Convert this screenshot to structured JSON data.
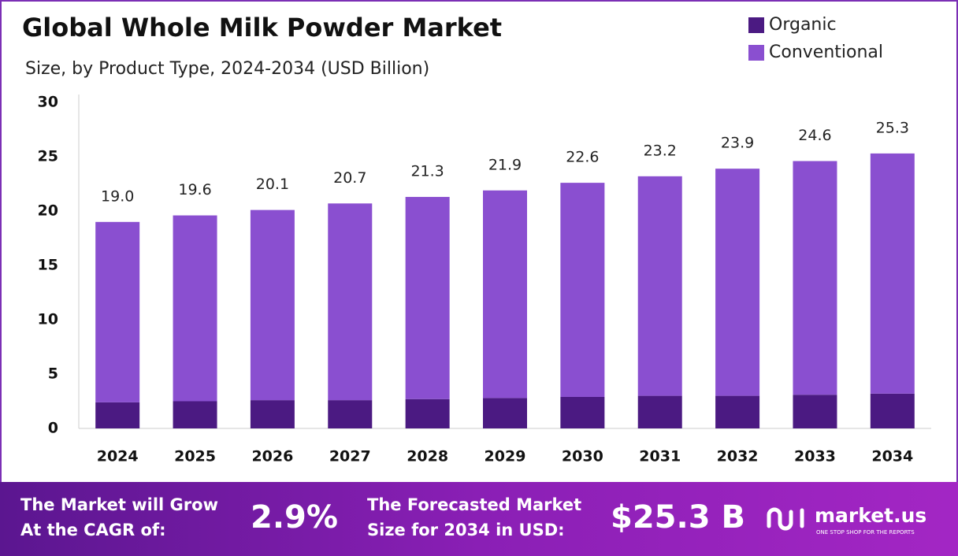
{
  "chart_data": {
    "type": "stacked_bar",
    "title": "Global Whole Milk Powder Market",
    "subtitle": "Size, by Product Type, 2024-2034 (USD Billion)",
    "categories": [
      "2024",
      "2025",
      "2026",
      "2027",
      "2028",
      "2029",
      "2030",
      "2031",
      "2032",
      "2033",
      "2034"
    ],
    "series": [
      {
        "name": "Organic",
        "color": "#4b1a82",
        "values": [
          2.4,
          2.5,
          2.6,
          2.6,
          2.7,
          2.8,
          2.9,
          3.0,
          3.0,
          3.1,
          3.2
        ]
      },
      {
        "name": "Conventional",
        "color": "#8a4fd0",
        "values": [
          16.6,
          17.1,
          17.5,
          18.1,
          18.6,
          19.1,
          19.7,
          20.2,
          20.9,
          21.5,
          22.1
        ]
      }
    ],
    "totals": [
      19,
      19.6,
      20.1,
      20.7,
      21.3,
      21.9,
      22.6,
      23.2,
      23.9,
      24.6,
      25.3
    ],
    "total_labels": [
      "19.0",
      "19.6",
      "20.1",
      "20.7",
      "21.3",
      "21.9",
      "22.6",
      "23.2",
      "23.9",
      "24.6",
      "25.3"
    ],
    "ylim": [
      0,
      30
    ],
    "yticks": [
      0,
      5,
      10,
      15,
      20,
      25,
      30
    ],
    "grid": false,
    "legend": "top-right"
  },
  "footer": {
    "cagr_text": [
      "The Market will Grow",
      "At the CAGR of:"
    ],
    "cagr_value": "2.9%",
    "forecast_text": [
      "The Forecasted Market",
      "Size for 2034 in USD:"
    ],
    "forecast_value": "$25.3 B",
    "brand": "market.us",
    "tagline": "ONE STOP SHOP FOR THE REPORTS"
  }
}
